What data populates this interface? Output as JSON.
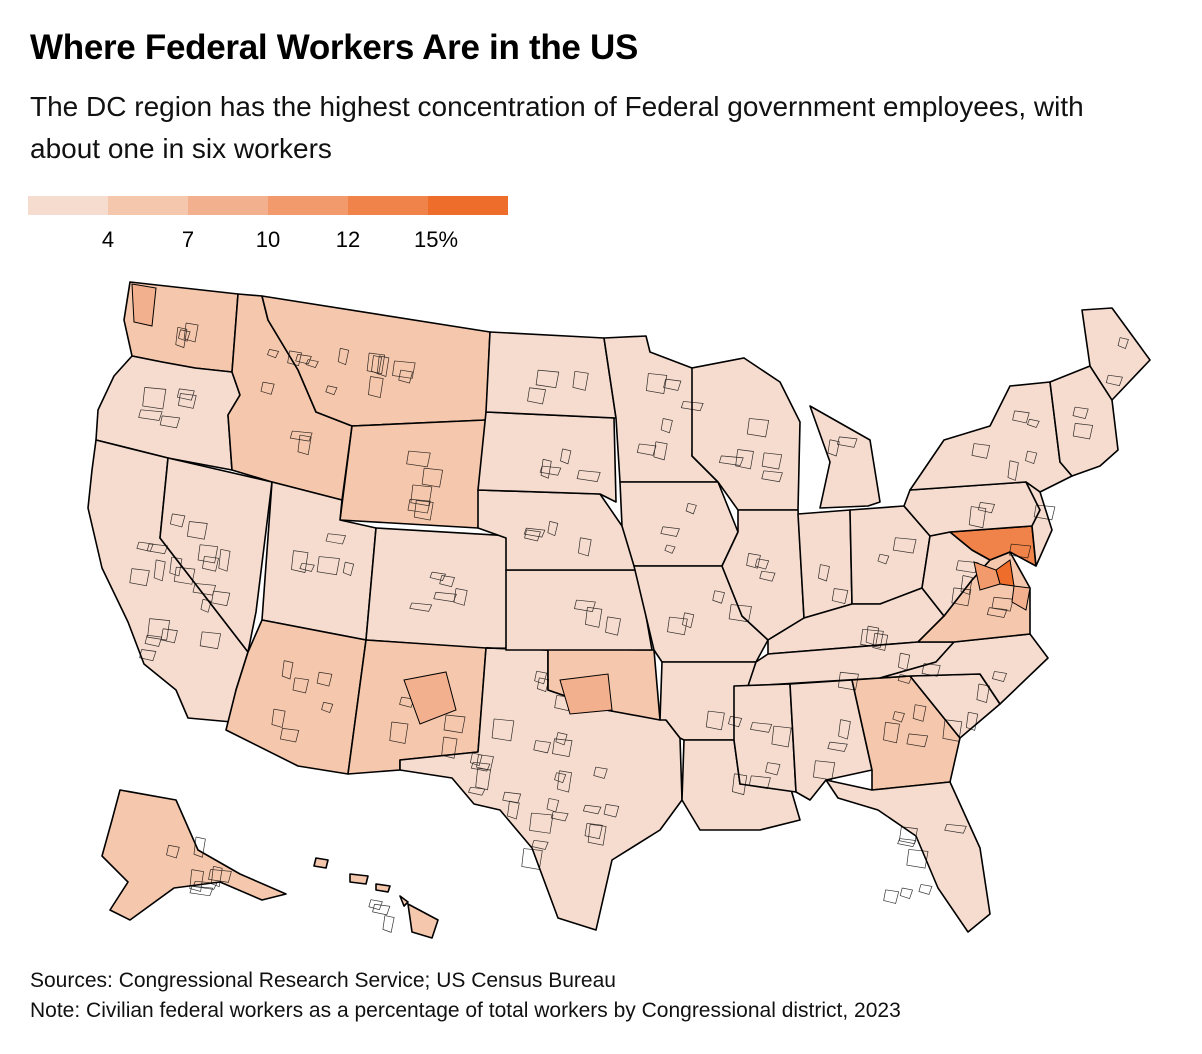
{
  "header": {
    "title": "Where Federal Workers Are in the US",
    "subtitle": "The DC region has the highest concentration of Federal government employees, with about one in six workers"
  },
  "legend": {
    "colors": [
      "#f6dccf",
      "#f5c7ac",
      "#f3b08e",
      "#f29a6c",
      "#f0834a",
      "#ee6d2b"
    ],
    "ticks": [
      "4",
      "7",
      "10",
      "12",
      "15%"
    ]
  },
  "map": {
    "stroke": "#000000",
    "regions": [
      {
        "name": "Washington",
        "level": 1
      },
      {
        "name": "Oregon",
        "level": 0
      },
      {
        "name": "California",
        "level": 0
      },
      {
        "name": "Nevada",
        "level": 0
      },
      {
        "name": "Idaho",
        "level": 1
      },
      {
        "name": "Montana",
        "level": 1
      },
      {
        "name": "Wyoming",
        "level": 1
      },
      {
        "name": "Utah",
        "level": 0
      },
      {
        "name": "Arizona",
        "level": 1
      },
      {
        "name": "Colorado",
        "level": 0
      },
      {
        "name": "New Mexico",
        "level": 1
      },
      {
        "name": "Texas",
        "level": 0
      },
      {
        "name": "Oklahoma",
        "level": 1
      },
      {
        "name": "Kansas",
        "level": 0
      },
      {
        "name": "Nebraska",
        "level": 0
      },
      {
        "name": "South Dakota",
        "level": 0
      },
      {
        "name": "North Dakota",
        "level": 0
      },
      {
        "name": "Minnesota",
        "level": 0
      },
      {
        "name": "Iowa",
        "level": 0
      },
      {
        "name": "Missouri",
        "level": 0
      },
      {
        "name": "Arkansas",
        "level": 0
      },
      {
        "name": "Louisiana",
        "level": 0
      },
      {
        "name": "Wisconsin",
        "level": 0
      },
      {
        "name": "Illinois",
        "level": 0
      },
      {
        "name": "Michigan",
        "level": 0
      },
      {
        "name": "Indiana",
        "level": 0
      },
      {
        "name": "Ohio",
        "level": 0
      },
      {
        "name": "Kentucky",
        "level": 0
      },
      {
        "name": "Tennessee",
        "level": 0
      },
      {
        "name": "Mississippi",
        "level": 0
      },
      {
        "name": "Alabama",
        "level": 0
      },
      {
        "name": "Georgia",
        "level": 1
      },
      {
        "name": "Florida",
        "level": 0
      },
      {
        "name": "South Carolina",
        "level": 0
      },
      {
        "name": "North Carolina",
        "level": 0
      },
      {
        "name": "Virginia",
        "level": 1
      },
      {
        "name": "West Virginia",
        "level": 0
      },
      {
        "name": "Maryland",
        "level": 4
      },
      {
        "name": "Pennsylvania",
        "level": 0
      },
      {
        "name": "New York",
        "level": 0
      },
      {
        "name": "New Jersey",
        "level": 0
      },
      {
        "name": "New England",
        "level": 0
      },
      {
        "name": "Maine",
        "level": 0
      },
      {
        "name": "Alaska",
        "level": 1
      },
      {
        "name": "Hawaii",
        "level": 1
      }
    ],
    "highlights": [
      {
        "name": "DC-area-north",
        "level": 5
      },
      {
        "name": "DC-area-south",
        "level": 3
      },
      {
        "name": "Southern-Maryland",
        "level": 2
      },
      {
        "name": "Central-NM",
        "level": 2
      },
      {
        "name": "OKC-area",
        "level": 2
      },
      {
        "name": "Puget-Sound",
        "level": 2
      }
    ]
  },
  "footer": {
    "sources": "Sources: Congressional Research Service; US Census Bureau",
    "note": "Note: Civilian federal workers as a percentage of total workers by Congressional district, 2023"
  }
}
